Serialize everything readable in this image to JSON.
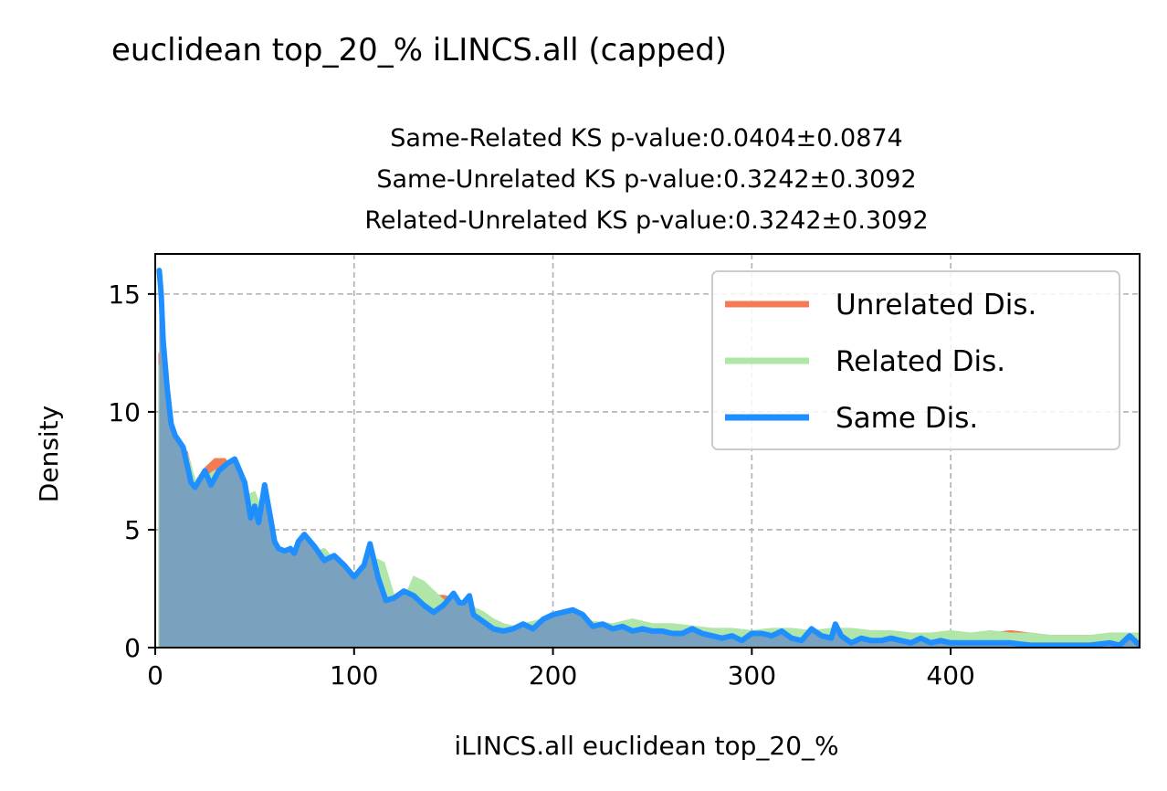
{
  "suptitle": "euclidean top_20_% iLINCS.all (capped)",
  "chart_data": {
    "type": "area",
    "title_lines": [
      "Same-Related KS p-value:0.0404±0.0874",
      "Same-Unrelated KS p-value:0.3242±0.3092",
      "Related-Unrelated KS p-value:0.3242±0.3092"
    ],
    "xlabel": "iLINCS.all euclidean top_20_%",
    "ylabel": "Density",
    "xlim": [
      0,
      495
    ],
    "ylim": [
      0,
      16.7
    ],
    "xticks": [
      0,
      100,
      200,
      300,
      400
    ],
    "yticks": [
      0,
      5,
      10,
      15
    ],
    "grid": true,
    "legend_position": "top-right",
    "series": [
      {
        "name": "Unrelated Dis.",
        "color": "#f47c54",
        "x": [
          2,
          5,
          8,
          12,
          16,
          20,
          25,
          30,
          35,
          40,
          45,
          50,
          55,
          60,
          65,
          70,
          75,
          80,
          85,
          90,
          95,
          100,
          105,
          110,
          115,
          120,
          125,
          130,
          135,
          140,
          145,
          150,
          155,
          160,
          165,
          170,
          175,
          180,
          190,
          200,
          210,
          220,
          230,
          240,
          250,
          260,
          270,
          280,
          290,
          300,
          310,
          320,
          330,
          340,
          350,
          360,
          370,
          380,
          390,
          400,
          410,
          420,
          430,
          440,
          450,
          460,
          470,
          480,
          490,
          495
        ],
        "values": [
          12.5,
          10.0,
          9.2,
          8.6,
          8.3,
          7.0,
          7.6,
          8.0,
          8.0,
          7.5,
          6.0,
          6.2,
          5.0,
          4.2,
          3.8,
          3.8,
          3.6,
          3.5,
          3.8,
          3.6,
          3.2,
          2.8,
          2.6,
          3.2,
          2.6,
          1.9,
          1.8,
          2.4,
          2.5,
          2.2,
          2.2,
          2.1,
          1.9,
          1.6,
          1.4,
          1.2,
          0.9,
          0.9,
          0.9,
          1.0,
          1.0,
          1.0,
          0.9,
          0.9,
          0.9,
          0.8,
          0.8,
          0.7,
          0.7,
          0.6,
          0.6,
          0.6,
          0.6,
          0.6,
          0.7,
          0.6,
          0.6,
          0.6,
          0.6,
          0.6,
          0.6,
          0.6,
          0.7,
          0.6,
          0.5,
          0.5,
          0.5,
          0.4,
          0.4,
          0.4
        ]
      },
      {
        "name": "Related Dis.",
        "color": "#b0e6a8",
        "x": [
          2,
          5,
          8,
          12,
          16,
          20,
          25,
          30,
          35,
          40,
          45,
          50,
          55,
          60,
          65,
          70,
          75,
          80,
          85,
          90,
          95,
          100,
          105,
          110,
          115,
          120,
          125,
          130,
          135,
          140,
          145,
          150,
          155,
          160,
          165,
          170,
          175,
          180,
          190,
          200,
          210,
          220,
          230,
          240,
          250,
          260,
          270,
          280,
          290,
          300,
          310,
          320,
          330,
          340,
          350,
          360,
          370,
          380,
          390,
          400,
          410,
          420,
          430,
          440,
          450,
          460,
          470,
          480,
          490,
          495
        ],
        "values": [
          12.0,
          8.0,
          7.8,
          8.6,
          8.2,
          7.1,
          7.2,
          7.5,
          7.6,
          7.6,
          6.4,
          6.6,
          5.5,
          4.3,
          4.0,
          4.1,
          3.9,
          4.0,
          4.2,
          3.7,
          3.5,
          3.0,
          3.2,
          3.8,
          3.6,
          2.2,
          2.0,
          3.0,
          2.8,
          2.4,
          2.0,
          2.0,
          1.9,
          1.7,
          1.5,
          1.2,
          1.0,
          0.9,
          1.1,
          1.3,
          1.3,
          1.1,
          1.0,
          1.2,
          1.0,
          1.0,
          0.9,
          0.8,
          0.8,
          0.7,
          0.8,
          0.8,
          0.7,
          0.8,
          0.8,
          0.7,
          0.7,
          0.6,
          0.6,
          0.7,
          0.6,
          0.7,
          0.6,
          0.6,
          0.5,
          0.5,
          0.5,
          0.6,
          0.6,
          0.6
        ]
      },
      {
        "name": "Same Dis.",
        "color": "#1f8fff",
        "x": [
          2,
          3,
          4,
          6,
          8,
          10,
          14,
          18,
          20,
          25,
          28,
          32,
          36,
          40,
          42,
          45,
          48,
          50,
          52,
          55,
          58,
          60,
          62,
          65,
          68,
          70,
          72,
          75,
          78,
          80,
          85,
          90,
          95,
          100,
          105,
          108,
          112,
          116,
          120,
          125,
          130,
          135,
          140,
          145,
          150,
          153,
          155,
          158,
          160,
          165,
          170,
          175,
          180,
          185,
          190,
          195,
          200,
          205,
          210,
          215,
          220,
          225,
          230,
          235,
          240,
          245,
          250,
          255,
          260,
          265,
          270,
          275,
          280,
          285,
          290,
          295,
          300,
          305,
          310,
          315,
          320,
          325,
          330,
          335,
          340,
          342,
          345,
          350,
          355,
          360,
          365,
          370,
          375,
          380,
          385,
          390,
          395,
          400,
          410,
          420,
          430,
          440,
          450,
          460,
          470,
          480,
          485,
          490,
          495
        ],
        "values": [
          16.0,
          15.0,
          13.0,
          11.0,
          9.5,
          9.0,
          8.5,
          7.0,
          6.8,
          7.5,
          6.9,
          7.5,
          7.8,
          8.0,
          7.6,
          7.0,
          5.5,
          6.0,
          5.3,
          6.9,
          5.5,
          4.5,
          4.2,
          4.1,
          4.2,
          4.0,
          4.5,
          4.8,
          4.5,
          4.3,
          3.7,
          3.9,
          3.5,
          3.0,
          3.5,
          4.4,
          3.0,
          2.0,
          2.1,
          2.4,
          2.2,
          1.8,
          1.5,
          1.8,
          2.3,
          1.9,
          1.9,
          2.2,
          1.4,
          1.1,
          0.8,
          0.7,
          0.8,
          1.0,
          0.8,
          1.2,
          1.4,
          1.5,
          1.6,
          1.4,
          0.9,
          1.0,
          0.8,
          0.9,
          0.7,
          0.8,
          0.7,
          0.7,
          0.6,
          0.6,
          0.8,
          0.6,
          0.5,
          0.4,
          0.5,
          0.3,
          0.6,
          0.6,
          0.5,
          0.7,
          0.4,
          0.3,
          0.8,
          0.5,
          0.4,
          1.0,
          0.5,
          0.2,
          0.4,
          0.3,
          0.3,
          0.4,
          0.3,
          0.2,
          0.4,
          0.2,
          0.3,
          0.2,
          0.2,
          0.2,
          0.2,
          0.1,
          0.1,
          0.1,
          0.1,
          0.2,
          0.1,
          0.5,
          0.1
        ]
      }
    ]
  }
}
